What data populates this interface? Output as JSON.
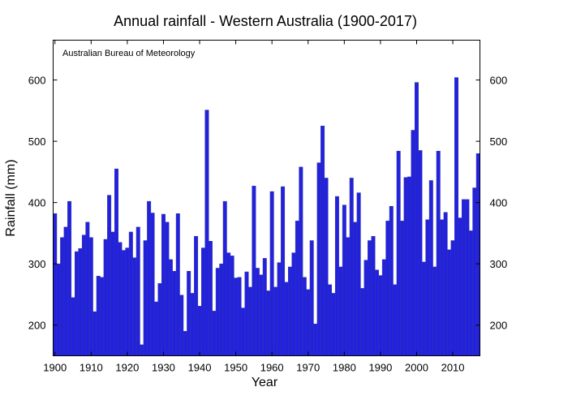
{
  "chart_data": {
    "type": "bar",
    "title": "Annual rainfall - Western Australia (1900-2017)",
    "source_note": "Australian Bureau of Meteorology",
    "xlabel": "Year",
    "ylabel": "Rainfall (mm)",
    "xlim": [
      1900,
      2017
    ],
    "ylim": [
      150,
      665
    ],
    "x_ticks": [
      1900,
      1910,
      1920,
      1930,
      1940,
      1950,
      1960,
      1970,
      1980,
      1990,
      2000,
      2010
    ],
    "x_tick_labels": [
      "1900",
      "1910",
      "1920",
      "1930",
      "1940",
      "1950",
      "1960",
      "1970",
      "1980",
      "1990",
      "2000",
      "2010"
    ],
    "y_ticks": [
      200,
      300,
      400,
      500,
      600
    ],
    "y_tick_labels": [
      "200",
      "300",
      "400",
      "500",
      "600"
    ],
    "grid": false,
    "bar_color": "#2222dd",
    "bar_edge_color": "#3333aa",
    "series": [
      {
        "name": "Annual rainfall",
        "years": [
          1900,
          1901,
          1902,
          1903,
          1904,
          1905,
          1906,
          1907,
          1908,
          1909,
          1910,
          1911,
          1912,
          1913,
          1914,
          1915,
          1916,
          1917,
          1918,
          1919,
          1920,
          1921,
          1922,
          1923,
          1924,
          1925,
          1926,
          1927,
          1928,
          1929,
          1930,
          1931,
          1932,
          1933,
          1934,
          1935,
          1936,
          1937,
          1938,
          1939,
          1940,
          1941,
          1942,
          1943,
          1944,
          1945,
          1946,
          1947,
          1948,
          1949,
          1950,
          1951,
          1952,
          1953,
          1954,
          1955,
          1956,
          1957,
          1958,
          1959,
          1960,
          1961,
          1962,
          1963,
          1964,
          1965,
          1966,
          1967,
          1968,
          1969,
          1970,
          1971,
          1972,
          1973,
          1974,
          1975,
          1976,
          1977,
          1978,
          1979,
          1980,
          1981,
          1982,
          1983,
          1984,
          1985,
          1986,
          1987,
          1988,
          1989,
          1990,
          1991,
          1992,
          1993,
          1994,
          1995,
          1996,
          1997,
          1998,
          1999,
          2000,
          2001,
          2002,
          2003,
          2004,
          2005,
          2006,
          2007,
          2008,
          2009,
          2010,
          2011,
          2012,
          2013,
          2014,
          2015,
          2016,
          2017
        ],
        "values": [
          382,
          300,
          343,
          360,
          402,
          245,
          320,
          325,
          347,
          368,
          343,
          222,
          280,
          278,
          340,
          412,
          352,
          455,
          335,
          322,
          326,
          352,
          310,
          360,
          168,
          338,
          402,
          383,
          238,
          268,
          381,
          368,
          307,
          288,
          382,
          249,
          190,
          288,
          252,
          345,
          231,
          326,
          551,
          337,
          223,
          293,
          300,
          402,
          318,
          313,
          277,
          278,
          228,
          287,
          262,
          427,
          293,
          282,
          309,
          256,
          418,
          262,
          302,
          426,
          270,
          295,
          318,
          370,
          458,
          278,
          258,
          338,
          202,
          465,
          525,
          440,
          266,
          252,
          410,
          295,
          396,
          343,
          440,
          368,
          416,
          260,
          306,
          338,
          345,
          290,
          281,
          307,
          370,
          394,
          266,
          484,
          370,
          441,
          442,
          518,
          596,
          485,
          303,
          372,
          436,
          295,
          484,
          372,
          384,
          323,
          338,
          604,
          375,
          405,
          405,
          354,
          424,
          480
        ]
      }
    ]
  }
}
